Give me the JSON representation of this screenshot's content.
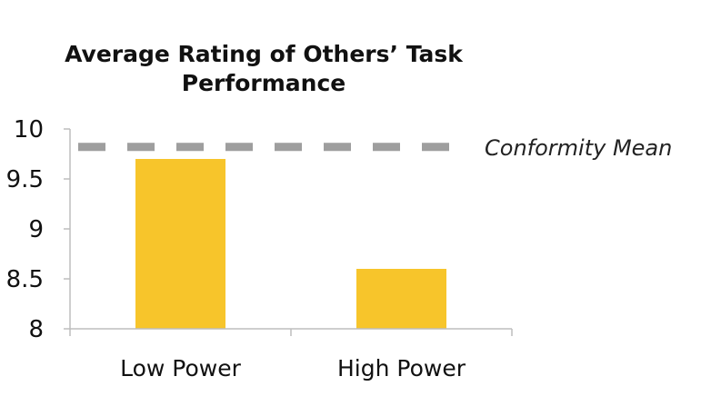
{
  "chart_data": {
    "type": "bar",
    "title": "Average Rating of Others’ Task Performance",
    "categories": [
      "Low Power",
      "High Power"
    ],
    "values": [
      9.7,
      8.6
    ],
    "ylim": [
      8,
      10
    ],
    "yticks": [
      "8",
      "8.5",
      "9",
      "9.5",
      "10"
    ],
    "bar_color": "#F7C52B",
    "reference_line": {
      "label": "Conformity Mean",
      "value": 9.82,
      "style": "dashed",
      "color": "#9E9E9E"
    },
    "grid": false,
    "legend": "none"
  }
}
